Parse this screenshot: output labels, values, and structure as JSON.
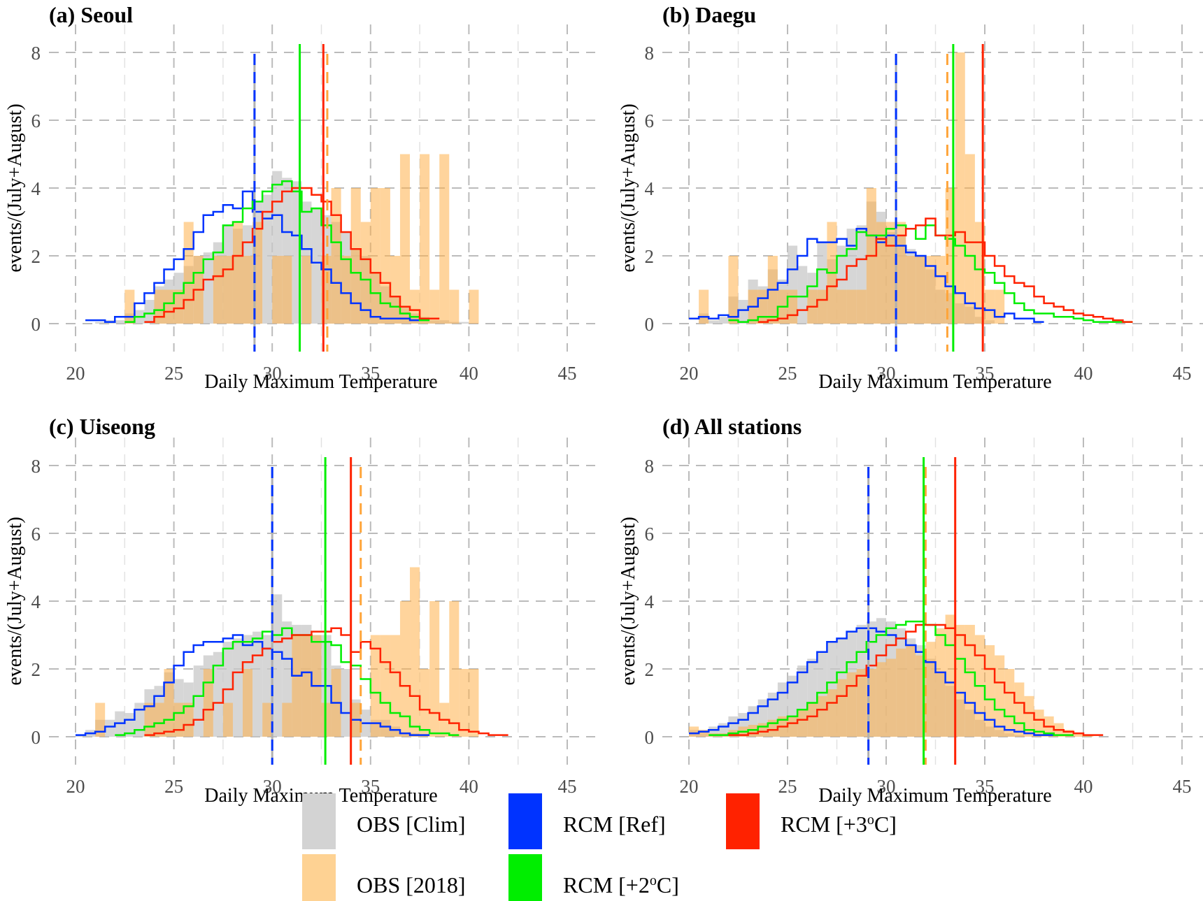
{
  "colors": {
    "clim": "#cccccc",
    "y2018": "#ffa53a",
    "ref": "#0033ff",
    "p2": "#00ee00",
    "p3": "#ff2200",
    "grid": "#bbbbbb",
    "tick": "#4d4d4d"
  },
  "legend": [
    {
      "key": "clim",
      "label": "OBS [Clim]",
      "color": "#d3d3d3"
    },
    {
      "key": "y2018",
      "label": "OBS [2018]",
      "color": "#fed293"
    },
    {
      "key": "ref",
      "label": "RCM [Ref]",
      "color": "#0033ff"
    },
    {
      "key": "p2",
      "label": "RCM [+2°C]",
      "color": "#00ee00"
    },
    {
      "key": "p3",
      "label": "RCM [+3°C]",
      "color": "#ff2200"
    }
  ],
  "chart_data": [
    {
      "type": "bar",
      "title": "(a) Seoul",
      "xlabel": "Daily Maximum Temperature",
      "ylabel": "events/(July+August)",
      "xlim": [
        20,
        45
      ],
      "ylim": [
        0,
        8
      ],
      "xticks": [
        20,
        25,
        30,
        35,
        40,
        45
      ],
      "yticks": [
        0,
        2,
        4,
        6,
        8
      ],
      "bin_start": 20,
      "bin_width": 0.5,
      "grid": true,
      "clim": [
        0,
        0,
        0.05,
        0.1,
        0.1,
        0.3,
        0.4,
        0.7,
        1.1,
        1.3,
        1.5,
        1.7,
        2.0,
        2.1,
        2.4,
        2.9,
        2.8,
        2.9,
        3.6,
        3.8,
        4.5,
        4.3,
        4.2,
        3.6,
        3.4,
        3.2,
        3.0,
        2.7,
        2.2,
        2.0,
        1.5,
        1.1,
        0.8,
        0.5,
        0.3,
        0.2,
        0.1,
        0.1,
        0.05,
        0.05,
        0,
        0,
        0,
        0,
        0,
        0,
        0,
        0,
        0,
        0
      ],
      "y2018": [
        0,
        0,
        0,
        0,
        0,
        1,
        0,
        0,
        1,
        1,
        1,
        3,
        2,
        0,
        2,
        2,
        3,
        2,
        3,
        0,
        2,
        2,
        0,
        2,
        0,
        2,
        4,
        2,
        4,
        3,
        4,
        4,
        2,
        5,
        1,
        5,
        1,
        5,
        1,
        0,
        1,
        0,
        0,
        0,
        0,
        0,
        0,
        0,
        0,
        0
      ],
      "ref": [
        0,
        0.1,
        0.1,
        0.05,
        0.2,
        0.2,
        0.6,
        0.9,
        1.2,
        1.6,
        1.9,
        2.2,
        2.7,
        3.2,
        3.3,
        3.5,
        3.4,
        3.9,
        3.3,
        3.1,
        3.2,
        2.7,
        2.6,
        2.2,
        1.8,
        1.6,
        1.2,
        0.9,
        0.6,
        0.4,
        0.2,
        0.15,
        0.15,
        0.15,
        0.1,
        0,
        0,
        0,
        0,
        0,
        0,
        0,
        0,
        0,
        0,
        0,
        0,
        0,
        0,
        0
      ],
      "p2": [
        0,
        0,
        0,
        0,
        0,
        0.05,
        0.2,
        0.3,
        0.4,
        0.6,
        0.9,
        1.2,
        1.5,
        1.9,
        2.1,
        2.9,
        3.0,
        3.4,
        3.6,
        3.9,
        4.1,
        4.2,
        3.9,
        3.3,
        3.4,
        2.9,
        2.4,
        1.9,
        1.5,
        1.3,
        0.9,
        0.6,
        0.5,
        0.3,
        0.2,
        0.1,
        0,
        0,
        0,
        0,
        0,
        0,
        0,
        0,
        0,
        0,
        0,
        0,
        0,
        0
      ],
      "p3": [
        0,
        0,
        0,
        0,
        0,
        0,
        0,
        0.05,
        0.2,
        0.35,
        0.45,
        0.7,
        1.0,
        1.3,
        1.4,
        1.6,
        2.0,
        2.4,
        2.8,
        3.3,
        3.6,
        3.9,
        4.0,
        4.0,
        3.8,
        3.6,
        3.2,
        2.7,
        2.2,
        1.9,
        1.5,
        1.2,
        0.8,
        0.5,
        0.4,
        0.15,
        0.15,
        0,
        0,
        0,
        0,
        0,
        0,
        0,
        0,
        0,
        0,
        0,
        0,
        0
      ],
      "vlines": {
        "clim_mean": 29.1,
        "ref_mean": 29.1,
        "y2018_mean": 32.8,
        "p2_mean": 31.4,
        "p3_mean": 32.6
      }
    },
    {
      "type": "bar",
      "title": "(b) Daegu",
      "xlabel": "Daily Maximum Temperature",
      "ylabel": "events/(July+August)",
      "xlim": [
        20,
        45
      ],
      "ylim": [
        0,
        8
      ],
      "xticks": [
        20,
        25,
        30,
        35,
        40,
        45
      ],
      "yticks": [
        0,
        2,
        4,
        6,
        8
      ],
      "bin_start": 20,
      "bin_width": 0.5,
      "grid": true,
      "clim": [
        0,
        0.3,
        0.1,
        0.2,
        0.8,
        0.7,
        1.3,
        1.1,
        1.6,
        1.3,
        2.3,
        1.7,
        1.5,
        2.4,
        1.9,
        2.3,
        2.8,
        2.9,
        3.6,
        3.3,
        2.7,
        2.6,
        2.2,
        2.0,
        1.6,
        1.0,
        0.9,
        0.6,
        0.5,
        0.2,
        0.1,
        0,
        0,
        0,
        0,
        0,
        0,
        0,
        0,
        0,
        0,
        0,
        0,
        0,
        0,
        0,
        0,
        0,
        0,
        0
      ],
      "y2018": [
        0,
        1,
        0,
        0,
        2,
        0,
        1,
        1,
        2,
        1,
        1,
        0,
        1,
        1,
        3,
        1,
        1,
        1,
        4,
        3,
        3,
        3,
        2,
        2,
        2,
        2,
        4,
        8,
        5,
        3,
        1,
        1,
        0,
        0,
        0,
        0,
        0,
        0,
        0,
        0,
        0,
        0,
        0,
        0,
        0,
        0,
        0,
        0,
        0,
        0
      ],
      "ref": [
        0.15,
        0.2,
        0.15,
        0.25,
        0.2,
        0.4,
        0.5,
        0.75,
        1.0,
        1.2,
        1.6,
        2.0,
        2.5,
        2.4,
        2.4,
        2.5,
        2.3,
        2.8,
        2.6,
        2.4,
        2.6,
        2.3,
        2.1,
        2.0,
        1.7,
        1.4,
        1.1,
        0.9,
        0.6,
        0.45,
        0.4,
        0.2,
        0.3,
        0.15,
        0.15,
        0.05,
        0.0,
        0,
        0,
        0,
        0,
        0,
        0,
        0,
        0,
        0,
        0,
        0,
        0,
        0
      ],
      "p2": [
        0,
        0,
        0,
        0,
        0.1,
        0.05,
        0.1,
        0.2,
        0.2,
        0.5,
        0.8,
        0.8,
        1.1,
        1.6,
        1.5,
        2.0,
        2.2,
        2.7,
        2.6,
        2.6,
        2.8,
        2.9,
        2.8,
        2.5,
        2.9,
        2.6,
        2.5,
        2.3,
        2.0,
        1.6,
        1.5,
        1.2,
        0.9,
        0.6,
        0.4,
        0.3,
        0.3,
        0.2,
        0.2,
        0.15,
        0.1,
        0.05,
        0.05,
        0.05,
        0.05,
        0,
        0,
        0,
        0,
        0
      ],
      "p3": [
        0,
        0,
        0,
        0,
        0,
        0,
        0,
        0.05,
        0.1,
        0.15,
        0.25,
        0.4,
        0.5,
        0.7,
        1.1,
        1.3,
        1.7,
        1.9,
        2.0,
        2.5,
        2.3,
        2.6,
        2.8,
        2.9,
        3.1,
        2.6,
        2.6,
        2.7,
        2.4,
        2.4,
        2.0,
        1.7,
        1.4,
        1.2,
        1.1,
        0.8,
        0.6,
        0.5,
        0.4,
        0.3,
        0.25,
        0.2,
        0.15,
        0.1,
        0.05,
        0,
        0,
        0,
        0,
        0
      ],
      "vlines": {
        "clim_mean": 30.5,
        "ref_mean": 30.5,
        "y2018_mean": 33.1,
        "p2_mean": 33.4,
        "p3_mean": 34.9
      }
    },
    {
      "type": "bar",
      "title": "(c) Uiseong",
      "xlabel": "Daily Maximum Temperature",
      "ylabel": "events/(July+August)",
      "xlim": [
        20,
        45
      ],
      "ylim": [
        0,
        8
      ],
      "xticks": [
        20,
        25,
        30,
        35,
        40,
        45
      ],
      "yticks": [
        0,
        2,
        4,
        6,
        8
      ],
      "bin_start": 20,
      "bin_width": 0.5,
      "grid": true,
      "clim": [
        0.05,
        0.2,
        0.5,
        0.5,
        0.75,
        0.7,
        1.0,
        1.4,
        1.5,
        1.9,
        1.7,
        1.6,
        2.1,
        2.4,
        2.5,
        2.8,
        2.9,
        3.0,
        3.1,
        3.0,
        4.2,
        3.4,
        3.3,
        3.3,
        3.0,
        3.0,
        2.1,
        2.0,
        1.1,
        0.8,
        0.5,
        0.5,
        0.3,
        0.1,
        0.1,
        0,
        0,
        0,
        0,
        0,
        0,
        0,
        0,
        0,
        0,
        0,
        0,
        0,
        0,
        0
      ],
      "y2018": [
        0,
        0,
        1,
        0,
        0,
        0,
        0,
        1,
        1,
        2,
        1,
        1,
        0,
        2,
        0,
        1,
        0,
        2,
        0,
        1,
        0,
        1,
        3,
        3,
        3,
        1,
        2,
        0,
        1,
        0,
        3,
        3,
        3,
        4,
        5,
        2,
        4,
        1,
        4,
        2,
        2,
        0,
        0,
        0,
        0,
        0,
        0,
        0,
        0,
        0
      ],
      "ref": [
        0.05,
        0.1,
        0.15,
        0.3,
        0.4,
        0.5,
        0.8,
        0.9,
        1.2,
        1.6,
        2.1,
        2.5,
        2.7,
        2.8,
        2.8,
        2.9,
        3.0,
        2.7,
        2.8,
        2.6,
        2.5,
        2.3,
        1.8,
        1.9,
        1.5,
        1.5,
        1.0,
        0.7,
        0.5,
        0.4,
        0.4,
        0.3,
        0.2,
        0.1,
        0.05,
        0.05,
        0,
        0,
        0,
        0,
        0,
        0,
        0,
        0,
        0,
        0,
        0,
        0,
        0,
        0
      ],
      "p2": [
        0,
        0,
        0,
        0,
        0.05,
        0.1,
        0.2,
        0.3,
        0.4,
        0.5,
        0.7,
        0.9,
        1.2,
        1.6,
        2.1,
        2.6,
        2.8,
        2.8,
        2.9,
        3.1,
        3.0,
        3.2,
        3.0,
        3.0,
        2.8,
        2.8,
        2.7,
        2.2,
        2.1,
        1.7,
        1.3,
        1.0,
        0.7,
        0.6,
        0.3,
        0.2,
        0.1,
        0.1,
        0.05,
        0,
        0,
        0,
        0,
        0,
        0,
        0,
        0,
        0,
        0,
        0
      ],
      "p3": [
        0,
        0,
        0,
        0,
        0,
        0,
        0,
        0.05,
        0.1,
        0.15,
        0.2,
        0.35,
        0.5,
        0.8,
        1.0,
        1.4,
        1.9,
        2.2,
        2.4,
        2.6,
        2.8,
        2.9,
        3.0,
        3.0,
        3.1,
        3.1,
        3.2,
        3.0,
        2.5,
        2.8,
        2.6,
        2.2,
        1.9,
        1.5,
        1.2,
        0.8,
        0.7,
        0.5,
        0.4,
        0.2,
        0.15,
        0.1,
        0.05,
        0.05,
        0,
        0,
        0,
        0,
        0,
        0
      ],
      "vlines": {
        "clim_mean": 30.0,
        "ref_mean": 30.0,
        "y2018_mean": 34.5,
        "p2_mean": 32.7,
        "p3_mean": 34.0
      }
    },
    {
      "type": "bar",
      "title": "(d) All stations",
      "xlabel": "Daily Maximum Temperature",
      "ylabel": "events/(July+August)",
      "xlim": [
        20,
        45
      ],
      "ylim": [
        0,
        8
      ],
      "xticks": [
        20,
        25,
        30,
        35,
        40,
        45
      ],
      "yticks": [
        0,
        2,
        4,
        6,
        8
      ],
      "bin_start": 20,
      "bin_width": 0.5,
      "grid": true,
      "clim": [
        0.2,
        0.2,
        0.3,
        0.4,
        0.6,
        0.7,
        0.9,
        1.1,
        1.3,
        1.6,
        1.8,
        2.1,
        2.3,
        2.5,
        2.8,
        2.9,
        3.1,
        3.3,
        3.4,
        3.5,
        3.4,
        3.2,
        2.9,
        2.7,
        2.3,
        1.9,
        1.5,
        1.1,
        0.8,
        0.5,
        0.3,
        0.2,
        0.1,
        0.05,
        0,
        0,
        0,
        0,
        0,
        0,
        0,
        0,
        0,
        0,
        0,
        0,
        0,
        0,
        0,
        0
      ],
      "y2018": [
        0.3,
        0.2,
        0.1,
        0.1,
        0.2,
        0.3,
        0.35,
        0.4,
        0.5,
        0.6,
        0.6,
        0.8,
        1.0,
        1.2,
        1.4,
        1.7,
        1.9,
        2.0,
        2.0,
        2.2,
        2.3,
        2.6,
        2.7,
        2.4,
        2.8,
        3.2,
        3.6,
        3.3,
        3.3,
        3.0,
        2.7,
        2.4,
        2.0,
        1.6,
        1.2,
        0.8,
        0.6,
        0.4,
        0.2,
        0.1,
        0.05,
        0,
        0,
        0,
        0,
        0,
        0,
        0,
        0,
        0
      ],
      "ref": [
        0.1,
        0.15,
        0.2,
        0.3,
        0.4,
        0.5,
        0.7,
        0.9,
        1.1,
        1.3,
        1.6,
        1.9,
        2.2,
        2.5,
        2.8,
        2.9,
        3.1,
        3.2,
        3.2,
        3.1,
        3.0,
        2.9,
        2.7,
        2.5,
        2.2,
        1.9,
        1.6,
        1.3,
        1.0,
        0.7,
        0.5,
        0.3,
        0.2,
        0.15,
        0.1,
        0.05,
        0.05,
        0,
        0,
        0,
        0,
        0,
        0,
        0,
        0,
        0,
        0,
        0,
        0,
        0
      ],
      "p2": [
        0,
        0,
        0.05,
        0.05,
        0.1,
        0.15,
        0.2,
        0.3,
        0.4,
        0.5,
        0.6,
        0.8,
        1.0,
        1.3,
        1.6,
        1.9,
        2.2,
        2.5,
        2.8,
        3.0,
        3.2,
        3.3,
        3.4,
        3.4,
        3.3,
        3.0,
        2.7,
        2.3,
        1.9,
        1.5,
        1.1,
        0.8,
        0.6,
        0.4,
        0.2,
        0.15,
        0.1,
        0.05,
        0.05,
        0,
        0,
        0,
        0,
        0,
        0,
        0,
        0,
        0,
        0,
        0
      ],
      "p3": [
        0,
        0,
        0,
        0,
        0.05,
        0.05,
        0.1,
        0.15,
        0.2,
        0.3,
        0.4,
        0.5,
        0.6,
        0.8,
        1.0,
        1.2,
        1.5,
        1.8,
        2.1,
        2.4,
        2.7,
        2.9,
        3.1,
        3.3,
        3.3,
        3.3,
        3.2,
        3.0,
        2.7,
        2.4,
        2.0,
        1.6,
        1.3,
        1.0,
        0.7,
        0.5,
        0.3,
        0.2,
        0.15,
        0.1,
        0.05,
        0.05,
        0,
        0,
        0,
        0,
        0,
        0,
        0,
        0
      ],
      "vlines": {
        "clim_mean": 29.1,
        "ref_mean": 29.1,
        "y2018_mean": 32.0,
        "p2_mean": 31.9,
        "p3_mean": 33.5
      }
    }
  ]
}
